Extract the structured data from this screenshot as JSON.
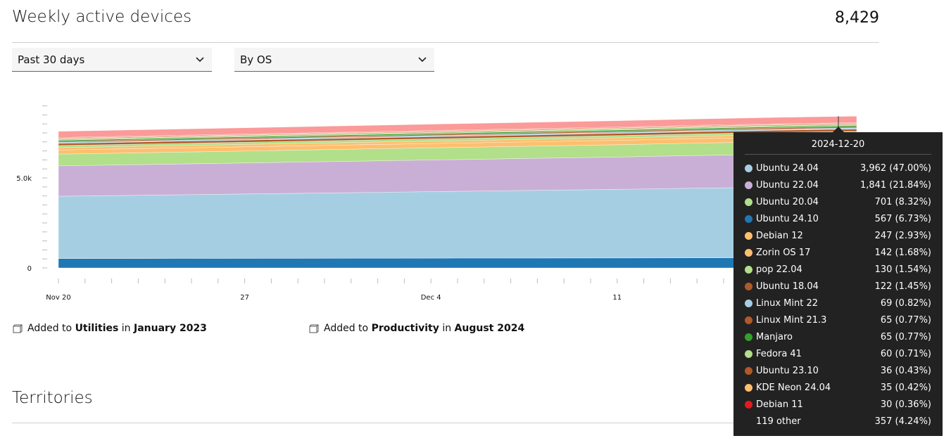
{
  "header": {
    "title": "Weekly active devices",
    "total": "8,429"
  },
  "filters": {
    "period": "Past 30 days",
    "group": "By OS"
  },
  "chart_data": {
    "type": "area",
    "stacked": true,
    "yticks": [
      {
        "value": 0,
        "label": "0"
      },
      {
        "value": 5000,
        "label": "5.0k"
      }
    ],
    "ylim": [
      0,
      9000
    ],
    "x_tick_labels": [
      {
        "date": "2024-11-20",
        "label": "Nov 20"
      },
      {
        "date": "2024-11-27",
        "label": "27"
      },
      {
        "date": "2024-12-04",
        "label": "Dec 4"
      },
      {
        "date": "2024-12-11",
        "label": "11"
      }
    ],
    "x": [
      "2024-11-20",
      "2024-11-23",
      "2024-11-26",
      "2024-11-29",
      "2024-12-02",
      "2024-12-05",
      "2024-12-08",
      "2024-12-11",
      "2024-12-14",
      "2024-12-17",
      "2024-12-20"
    ],
    "series": [
      {
        "name": "Ubuntu 24.10",
        "color": "#1f77b4",
        "values": [
          520,
          525,
          530,
          535,
          540,
          545,
          550,
          555,
          560,
          565,
          567
        ]
      },
      {
        "name": "Ubuntu 24.04",
        "color": "#a6cee3",
        "values": [
          3460,
          3510,
          3560,
          3610,
          3660,
          3710,
          3760,
          3810,
          3870,
          3920,
          3962
        ]
      },
      {
        "name": "Ubuntu 22.04",
        "color": "#c9afd6",
        "values": [
          1690,
          1705,
          1720,
          1735,
          1750,
          1765,
          1780,
          1795,
          1815,
          1830,
          1841
        ]
      },
      {
        "name": "Ubuntu 20.04",
        "color": "#b2df8a",
        "values": [
          650,
          655,
          660,
          665,
          670,
          675,
          680,
          685,
          690,
          696,
          701
        ]
      },
      {
        "name": "Debian 12",
        "color": "#fdbf6f",
        "values": [
          230,
          232,
          234,
          236,
          238,
          240,
          241,
          243,
          244,
          246,
          247
        ]
      },
      {
        "name": "Zorin OS 17",
        "color": "#fdbf6f",
        "values": [
          130,
          131,
          132,
          133,
          134,
          135,
          136,
          137,
          139,
          141,
          142
        ]
      },
      {
        "name": "pop 22.04",
        "color": "#b2df8a",
        "values": [
          120,
          121,
          122,
          123,
          124,
          125,
          126,
          127,
          128,
          129,
          130
        ]
      },
      {
        "name": "Ubuntu 18.04",
        "color": "#b15928",
        "values": [
          115,
          116,
          116,
          117,
          118,
          118,
          119,
          120,
          120,
          121,
          122
        ]
      },
      {
        "name": "Linux Mint 22",
        "color": "#a6cee3",
        "values": [
          60,
          61,
          62,
          63,
          64,
          65,
          66,
          67,
          67,
          68,
          69
        ]
      },
      {
        "name": "Linux Mint 21.3",
        "color": "#b15928",
        "values": [
          62,
          62,
          63,
          63,
          63,
          64,
          64,
          64,
          65,
          65,
          65
        ]
      },
      {
        "name": "Manjaro",
        "color": "#33a02c",
        "values": [
          60,
          60,
          61,
          61,
          62,
          62,
          63,
          63,
          64,
          64,
          65
        ]
      },
      {
        "name": "Fedora 41",
        "color": "#b2df8a",
        "values": [
          50,
          51,
          52,
          53,
          54,
          55,
          56,
          57,
          58,
          59,
          60
        ]
      },
      {
        "name": "Ubuntu 23.10",
        "color": "#b15928",
        "values": [
          35,
          35,
          35,
          36,
          36,
          36,
          36,
          36,
          36,
          36,
          36
        ]
      },
      {
        "name": "KDE Neon 24.04",
        "color": "#fdbf6f",
        "values": [
          32,
          32,
          33,
          33,
          33,
          34,
          34,
          34,
          35,
          35,
          35
        ]
      },
      {
        "name": "Debian 11",
        "color": "#e31a1c",
        "values": [
          32,
          32,
          31,
          31,
          31,
          31,
          31,
          30,
          30,
          30,
          30
        ]
      },
      {
        "name": "119 other",
        "color": "#fb9a99",
        "values": [
          340,
          342,
          344,
          346,
          348,
          350,
          351,
          353,
          354,
          356,
          357
        ]
      }
    ]
  },
  "tooltip": {
    "date": "2024-12-20",
    "rows": [
      {
        "name": "Ubuntu 24.04",
        "value": "3,962 (47.00%)",
        "color": "#a6cee3"
      },
      {
        "name": "Ubuntu 22.04",
        "value": "1,841 (21.84%)",
        "color": "#c9afd6"
      },
      {
        "name": "Ubuntu 20.04",
        "value": "701 (8.32%)",
        "color": "#b2df8a"
      },
      {
        "name": "Ubuntu 24.10",
        "value": "567 (6.73%)",
        "color": "#1f77b4"
      },
      {
        "name": "Debian 12",
        "value": "247 (2.93%)",
        "color": "#fdbf6f"
      },
      {
        "name": "Zorin OS 17",
        "value": "142 (1.68%)",
        "color": "#fdbf6f"
      },
      {
        "name": "pop 22.04",
        "value": "130 (1.54%)",
        "color": "#b2df8a"
      },
      {
        "name": "Ubuntu 18.04",
        "value": "122 (1.45%)",
        "color": "#b15928"
      },
      {
        "name": "Linux Mint 22",
        "value": "69 (0.82%)",
        "color": "#a6cee3"
      },
      {
        "name": "Linux Mint 21.3",
        "value": "65 (0.77%)",
        "color": "#b15928"
      },
      {
        "name": "Manjaro",
        "value": "65 (0.77%)",
        "color": "#33a02c"
      },
      {
        "name": "Fedora 41",
        "value": "60 (0.71%)",
        "color": "#b2df8a"
      },
      {
        "name": "Ubuntu 23.10",
        "value": "36 (0.43%)",
        "color": "#b15928"
      },
      {
        "name": "KDE Neon 24.04",
        "value": "35 (0.42%)",
        "color": "#fdbf6f"
      },
      {
        "name": "Debian 11",
        "value": "30 (0.36%)",
        "color": "#e31a1c"
      },
      {
        "name": "119 other",
        "value": "357 (4.24%)",
        "color": ""
      }
    ]
  },
  "added": [
    {
      "prefix": "Added to",
      "category": "Utilities",
      "middle": "in",
      "date": "January 2023"
    },
    {
      "prefix": "Added to",
      "category": "Productivity",
      "middle": "in",
      "date": "August 2024"
    }
  ],
  "territories": {
    "title": "Territories"
  }
}
